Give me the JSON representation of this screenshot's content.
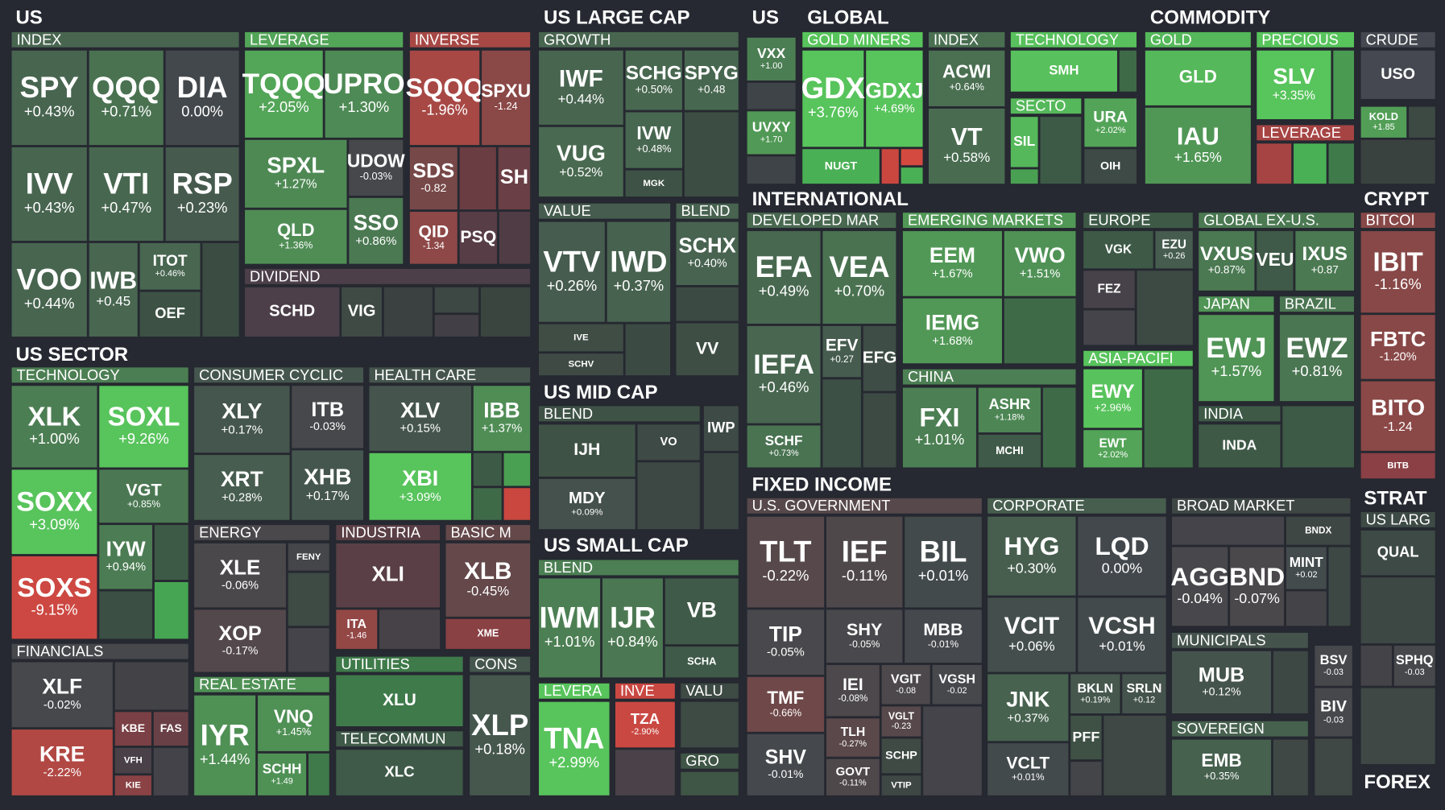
{
  "sections": [
    {
      "title": "US",
      "groups": [
        {
          "title": "INDEX",
          "tiles": [
            {
              "ticker": "SPY",
              "change": "+0.43%"
            },
            {
              "ticker": "QQQ",
              "change": "+0.71%"
            },
            {
              "ticker": "DIA",
              "change": "0.00%"
            },
            {
              "ticker": "IVV",
              "change": "+0.43%"
            },
            {
              "ticker": "VTI",
              "change": "+0.47%"
            },
            {
              "ticker": "RSP",
              "change": "+0.23%"
            },
            {
              "ticker": "VOO",
              "change": "+0.44%"
            },
            {
              "ticker": "IWB",
              "change": "+0.45"
            },
            {
              "ticker": "ITOT",
              "change": "+0.46%"
            },
            {
              "ticker": "OEF",
              "color": "#3d5244"
            }
          ]
        },
        {
          "title": "LEVERAGE",
          "tiles": [
            {
              "ticker": "TQQQ",
              "change": "+2.05%"
            },
            {
              "ticker": "UPRO",
              "change": "+1.30%"
            },
            {
              "ticker": "SPXL",
              "change": "+1.27%"
            },
            {
              "ticker": "UDOW",
              "change": "-0.03%"
            },
            {
              "ticker": "QLD",
              "change": "+1.36%"
            },
            {
              "ticker": "SSO",
              "change": "+0.86%"
            }
          ]
        },
        {
          "title": "INVERSE",
          "tiles": [
            {
              "ticker": "SQQQ",
              "change": "-1.96%"
            },
            {
              "ticker": "SPXU",
              "change": "-1.24"
            },
            {
              "ticker": "SDS",
              "change": "-0.82"
            },
            {
              "ticker": "SH",
              "color": "#6a3f45"
            },
            {
              "ticker": "QID",
              "change": "-1.34"
            },
            {
              "ticker": "PSQ",
              "color": "#573d46"
            }
          ]
        },
        {
          "title": "DIVIDEND",
          "tiles": [
            {
              "ticker": "SCHD",
              "color": "#4c3f4a"
            },
            {
              "ticker": "VIG",
              "color": "#3f4a45"
            }
          ]
        }
      ]
    },
    {
      "title": "US SECTOR",
      "groups": [
        {
          "title": "TECHNOLOGY",
          "tiles": [
            {
              "ticker": "XLK",
              "change": "+1.00%"
            },
            {
              "ticker": "SOXL",
              "change": "+9.26%"
            },
            {
              "ticker": "SOXX",
              "change": "+3.09%"
            },
            {
              "ticker": "VGT",
              "change": "+0.85%"
            },
            {
              "ticker": "IYW",
              "change": "+0.94%"
            },
            {
              "ticker": "SOXS",
              "change": "-9.15%"
            }
          ]
        },
        {
          "title": "FINANCIALS",
          "tiles": [
            {
              "ticker": "XLF",
              "change": "-0.02%"
            },
            {
              "ticker": "KRE",
              "change": "-2.22%"
            },
            {
              "ticker": "KBE",
              "color": "#7a4045"
            },
            {
              "ticker": "FAS",
              "color": "#6a4047"
            },
            {
              "ticker": "VFH",
              "color": "#4a4048"
            },
            {
              "ticker": "KIE",
              "color": "#8a4245"
            }
          ]
        },
        {
          "title": "CONSUMER CYCLIC",
          "tiles": [
            {
              "ticker": "XLY",
              "change": "+0.17%"
            },
            {
              "ticker": "ITB",
              "change": "-0.03%"
            },
            {
              "ticker": "XRT",
              "change": "+0.28%"
            },
            {
              "ticker": "XHB",
              "change": "+0.17%"
            }
          ]
        },
        {
          "title": "ENERGY",
          "tiles": [
            {
              "ticker": "XLE",
              "change": "-0.06%"
            },
            {
              "ticker": "FENY",
              "color": "#45464a"
            },
            {
              "ticker": "XOP",
              "change": "-0.17%"
            }
          ]
        },
        {
          "title": "REAL ESTATE",
          "tiles": [
            {
              "ticker": "IYR",
              "change": "+1.44%"
            },
            {
              "ticker": "VNQ",
              "change": "+1.45%"
            },
            {
              "ticker": "SCHH",
              "change": "+1.49"
            }
          ]
        },
        {
          "title": "HEALTH CARE",
          "tiles": [
            {
              "ticker": "XLV",
              "change": "+0.15%"
            },
            {
              "ticker": "IBB",
              "change": "+1.37%"
            },
            {
              "ticker": "XBI",
              "change": "+3.09%"
            }
          ]
        },
        {
          "title": "INDUSTRIA",
          "tiles": [
            {
              "ticker": "XLI",
              "color": "#5a3f47"
            },
            {
              "ticker": "ITA",
              "change": "-1.46"
            }
          ]
        },
        {
          "title": "BASIC M",
          "tiles": [
            {
              "ticker": "XLB",
              "change": "-0.45%"
            },
            {
              "ticker": "XME",
              "color": "#8a4144"
            }
          ]
        },
        {
          "title": "UTILITIES",
          "tiles": [
            {
              "ticker": "XLU",
              "color": "#3f7a4a"
            }
          ]
        },
        {
          "title": "TELECOMMUN",
          "tiles": [
            {
              "ticker": "XLC",
              "color": "#3f5a48"
            }
          ]
        },
        {
          "title": "CONS",
          "tiles": [
            {
              "ticker": "XLP",
              "change": "+0.18%"
            }
          ]
        }
      ]
    },
    {
      "title": "US LARGE CAP",
      "groups": [
        {
          "title": "GROWTH",
          "tiles": [
            {
              "ticker": "IWF",
              "change": "+0.44%"
            },
            {
              "ticker": "SCHG",
              "change": "+0.50%"
            },
            {
              "ticker": "SPYG",
              "change": "+0.48"
            },
            {
              "ticker": "VUG",
              "change": "+0.52%"
            },
            {
              "ticker": "IVW",
              "change": "+0.48%"
            },
            {
              "ticker": "MGK",
              "color": "#3e5346"
            }
          ]
        },
        {
          "title": "VALUE",
          "tiles": [
            {
              "ticker": "VTV",
              "change": "+0.26%"
            },
            {
              "ticker": "IWD",
              "change": "+0.37%"
            },
            {
              "ticker": "IVE",
              "color": "#3f4d45"
            },
            {
              "ticker": "SCHV",
              "color": "#3f4a45"
            }
          ]
        },
        {
          "title": "BLEND",
          "tiles": [
            {
              "ticker": "SCHX",
              "change": "+0.40%"
            },
            {
              "ticker": "VV",
              "color": "#3e4e45"
            }
          ]
        }
      ]
    },
    {
      "title": "US MID CAP",
      "groups": [
        {
          "title": "BLEND",
          "tiles": [
            {
              "ticker": "IJH",
              "color": "#3f5246"
            },
            {
              "ticker": "VO",
              "color": "#3e4a45"
            },
            {
              "ticker": "MDY",
              "change": "+0.09%"
            }
          ]
        },
        {
          "tiles": [
            {
              "ticker": "IWP",
              "color": "#3e4a45"
            }
          ]
        }
      ]
    },
    {
      "title": "US SMALL CAP",
      "groups": [
        {
          "title": "BLEND",
          "tiles": [
            {
              "ticker": "IWM",
              "change": "+1.01%"
            },
            {
              "ticker": "IJR",
              "change": "+0.84%"
            },
            {
              "ticker": "VB",
              "color": "#3f5a48"
            },
            {
              "ticker": "SCHA",
              "color": "#3f5a48"
            }
          ]
        },
        {
          "title": "LEVERA",
          "tiles": [
            {
              "ticker": "TNA",
              "change": "+2.99%"
            }
          ]
        },
        {
          "title": "INVE",
          "tiles": [
            {
              "ticker": "TZA",
              "change": "-2.90%"
            }
          ]
        },
        {
          "title": "VALU"
        },
        {
          "title": "GRO"
        }
      ]
    },
    {
      "title": "US",
      "groups": [
        {
          "tiles": [
            {
              "ticker": "VXX",
              "change": "+1.00"
            },
            {
              "ticker": "UVXY",
              "change": "+1.70"
            }
          ]
        }
      ]
    },
    {
      "title": "GLOBAL",
      "groups": [
        {
          "title": "GOLD MINERS",
          "tiles": [
            {
              "ticker": "GDX",
              "change": "+3.76%"
            },
            {
              "ticker": "GDXJ",
              "change": "+4.69%"
            },
            {
              "ticker": "NUGT",
              "color": "#4ab055"
            }
          ]
        },
        {
          "title": "INDEX",
          "tiles": [
            {
              "ticker": "ACWI",
              "change": "+0.64%"
            },
            {
              "ticker": "VT",
              "change": "+0.58%"
            }
          ]
        },
        {
          "title": "TECHNOLOGY",
          "tiles": [
            {
              "ticker": "SMH",
              "color": "#58c05c"
            }
          ]
        },
        {
          "title": "SECTO",
          "tiles": [
            {
              "ticker": "SIL",
              "color": "#55b85a"
            }
          ]
        },
        {
          "tiles": [
            {
              "ticker": "URA",
              "change": "+2.02%"
            },
            {
              "ticker": "OIH",
              "color": "#3e4a45"
            }
          ]
        }
      ]
    },
    {
      "title": "COMMODITY",
      "groups": [
        {
          "title": "GOLD",
          "tiles": [
            {
              "ticker": "GLD",
              "color": "#55b85a"
            },
            {
              "ticker": "IAU",
              "change": "+1.65%"
            }
          ]
        },
        {
          "title": "PRECIOUS",
          "tiles": [
            {
              "ticker": "SLV",
              "change": "+3.35%"
            }
          ]
        },
        {
          "title": "LEVERAGE"
        },
        {
          "title": "CRUDE",
          "tiles": [
            {
              "ticker": "USO",
              "color": "#454850"
            },
            {
              "ticker": "KOLD",
              "change": "+1.85"
            }
          ]
        }
      ]
    },
    {
      "title": "INTERNATIONAL",
      "groups": [
        {
          "title": "DEVELOPED MAR",
          "tiles": [
            {
              "ticker": "EFA",
              "change": "+0.49%"
            },
            {
              "ticker": "VEA",
              "change": "+0.70%"
            },
            {
              "ticker": "IEFA",
              "change": "+0.46%"
            },
            {
              "ticker": "EFV",
              "change": "+0.27"
            },
            {
              "ticker": "EFG",
              "color": "#3e4d45"
            },
            {
              "ticker": "SCHF",
              "change": "+0.73%"
            }
          ]
        },
        {
          "title": "EMERGING MARKETS",
          "tiles": [
            {
              "ticker": "EEM",
              "change": "+1.67%"
            },
            {
              "ticker": "VWO",
              "change": "+1.51%"
            },
            {
              "ticker": "IEMG",
              "change": "+1.68%"
            }
          ]
        },
        {
          "title": "CHINA",
          "tiles": [
            {
              "ticker": "FXI",
              "change": "+1.01%"
            },
            {
              "ticker": "ASHR",
              "change": "+1.18%"
            },
            {
              "ticker": "MCHI",
              "color": "#3f5a48"
            }
          ]
        },
        {
          "title": "EUROPE",
          "tiles": [
            {
              "ticker": "VGK",
              "color": "#3e5a47"
            },
            {
              "ticker": "EZU",
              "change": "+0.26"
            },
            {
              "ticker": "FEZ",
              "color": "#474249"
            }
          ]
        },
        {
          "title": "ASIA-PACIFI",
          "tiles": [
            {
              "ticker": "EWY",
              "change": "+2.96%"
            },
            {
              "ticker": "EWT",
              "change": "+2.02%"
            }
          ]
        },
        {
          "title": "GLOBAL EX-U.S.",
          "tiles": [
            {
              "ticker": "VXUS",
              "change": "+0.87%"
            },
            {
              "ticker": "VEU",
              "color": "#3f5a48"
            },
            {
              "ticker": "IXUS",
              "change": "+0.87"
            }
          ]
        },
        {
          "title": "JAPAN",
          "tiles": [
            {
              "ticker": "EWJ",
              "change": "+1.57%"
            }
          ]
        },
        {
          "title": "BRAZIL",
          "tiles": [
            {
              "ticker": "EWZ",
              "change": "+0.81%"
            }
          ]
        },
        {
          "title": "INDIA",
          "tiles": [
            {
              "ticker": "INDA",
              "color": "#3e5a47"
            }
          ]
        }
      ]
    },
    {
      "title": "CRYPT",
      "groups": [
        {
          "title": "BITCOI",
          "tiles": [
            {
              "ticker": "IBIT",
              "change": "-1.16%"
            },
            {
              "ticker": "FBTC",
              "change": "-1.20%"
            },
            {
              "ticker": "BITO",
              "change": "-1.24"
            },
            {
              "ticker": "BITB",
              "color": "#8a4045"
            }
          ]
        }
      ]
    },
    {
      "title": "FIXED INCOME",
      "groups": [
        {
          "title": "U.S. GOVERNMENT",
          "tiles": [
            {
              "ticker": "TLT",
              "change": "-0.22%"
            },
            {
              "ticker": "IEF",
              "change": "-0.11%"
            },
            {
              "ticker": "BIL",
              "change": "+0.01%"
            },
            {
              "ticker": "TIP",
              "change": "-0.05%"
            },
            {
              "ticker": "SHY",
              "change": "-0.05%"
            },
            {
              "ticker": "MBB",
              "change": "-0.01%"
            },
            {
              "ticker": "TMF",
              "change": "-0.66%"
            },
            {
              "ticker": "IEI",
              "change": "-0.08%"
            },
            {
              "ticker": "VGIT",
              "change": "-0.08"
            },
            {
              "ticker": "VGSH",
              "change": "-0.02"
            },
            {
              "ticker": "SHV",
              "change": "-0.01%"
            },
            {
              "ticker": "TLH",
              "change": "-0.27%"
            },
            {
              "ticker": "VGLT",
              "change": "-0.23"
            },
            {
              "ticker": "GOVT",
              "change": "-0.11%"
            },
            {
              "ticker": "SCHP",
              "color": "#3f4a45"
            },
            {
              "ticker": "VTIP",
              "color": "#3f4744"
            }
          ]
        },
        {
          "title": "CORPORATE",
          "tiles": [
            {
              "ticker": "HYG",
              "change": "+0.30%"
            },
            {
              "ticker": "LQD",
              "change": "0.00%"
            },
            {
              "ticker": "VCIT",
              "change": "+0.06%"
            },
            {
              "ticker": "VCSH",
              "change": "+0.01%"
            },
            {
              "ticker": "JNK",
              "change": "+0.37%"
            },
            {
              "ticker": "BKLN",
              "change": "+0.19%"
            },
            {
              "ticker": "SRLN",
              "change": "+0.12"
            },
            {
              "ticker": "VCLT",
              "change": "+0.01%"
            },
            {
              "ticker": "PFF",
              "color": "#3f5045"
            }
          ]
        },
        {
          "title": "BROAD MARKET",
          "tiles": [
            {
              "ticker": "BNDX",
              "color": "#3f4745"
            },
            {
              "ticker": "AGG",
              "change": "-0.04%"
            },
            {
              "ticker": "BND",
              "change": "-0.07%"
            },
            {
              "ticker": "MINT",
              "change": "+0.02"
            }
          ]
        },
        {
          "title": "MUNICIPALS",
          "tiles": [
            {
              "ticker": "MUB",
              "change": "+0.12%"
            }
          ]
        },
        {
          "tiles": [
            {
              "ticker": "BSV",
              "change": "-0.03"
            },
            {
              "ticker": "BIV",
              "change": "-0.03"
            }
          ]
        },
        {
          "title": "SOVEREIGN",
          "tiles": [
            {
              "ticker": "EMB",
              "change": "+0.35%"
            }
          ]
        }
      ]
    },
    {
      "title": "STRAT",
      "groups": [
        {
          "title": "US LARG",
          "tiles": [
            {
              "ticker": "QUAL",
              "color": "#3e4a45"
            }
          ]
        },
        {
          "tiles": [
            {
              "ticker": "SPHQ",
              "change": "-0.03"
            }
          ]
        }
      ]
    },
    {
      "title": "FOREX"
    }
  ]
}
